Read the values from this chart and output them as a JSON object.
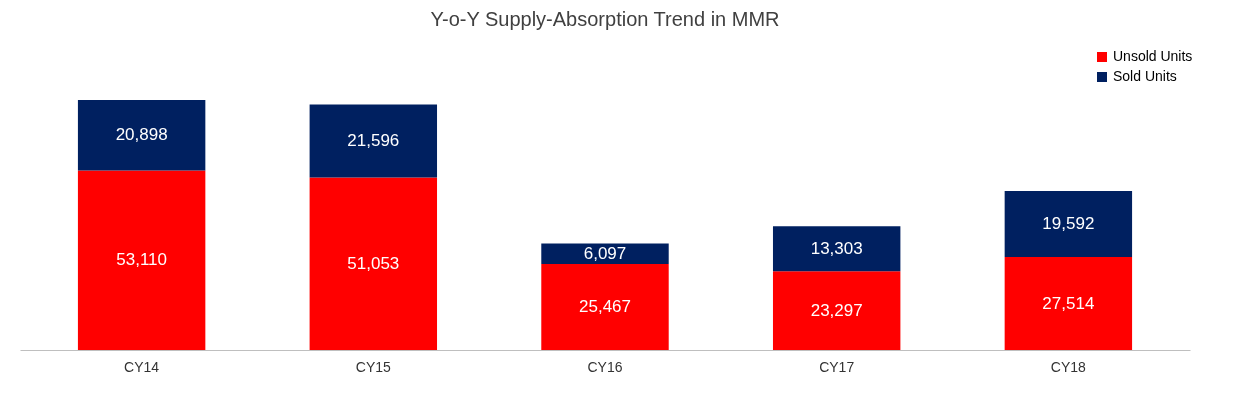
{
  "chart_data": {
    "type": "bar",
    "title": "Y-o-Y Supply-Absorption Trend in MMR",
    "categories": [
      "CY14",
      "CY15",
      "CY16",
      "CY17",
      "CY18"
    ],
    "stacked": true,
    "legend": "top right",
    "series": [
      {
        "name": "Unsold Units",
        "color": "#ff0000",
        "values": [
          53110,
          51053,
          25467,
          23297,
          27514
        ],
        "value_labels": [
          "53,110",
          "51,053",
          "25,467",
          "23,297",
          "27,514"
        ]
      },
      {
        "name": "Sold Units",
        "color": "#002060",
        "values": [
          20898,
          21596,
          6097,
          13303,
          19592
        ],
        "value_labels": [
          "20,898",
          "21,596",
          "6,097",
          "13,303",
          "19,592"
        ]
      }
    ]
  }
}
